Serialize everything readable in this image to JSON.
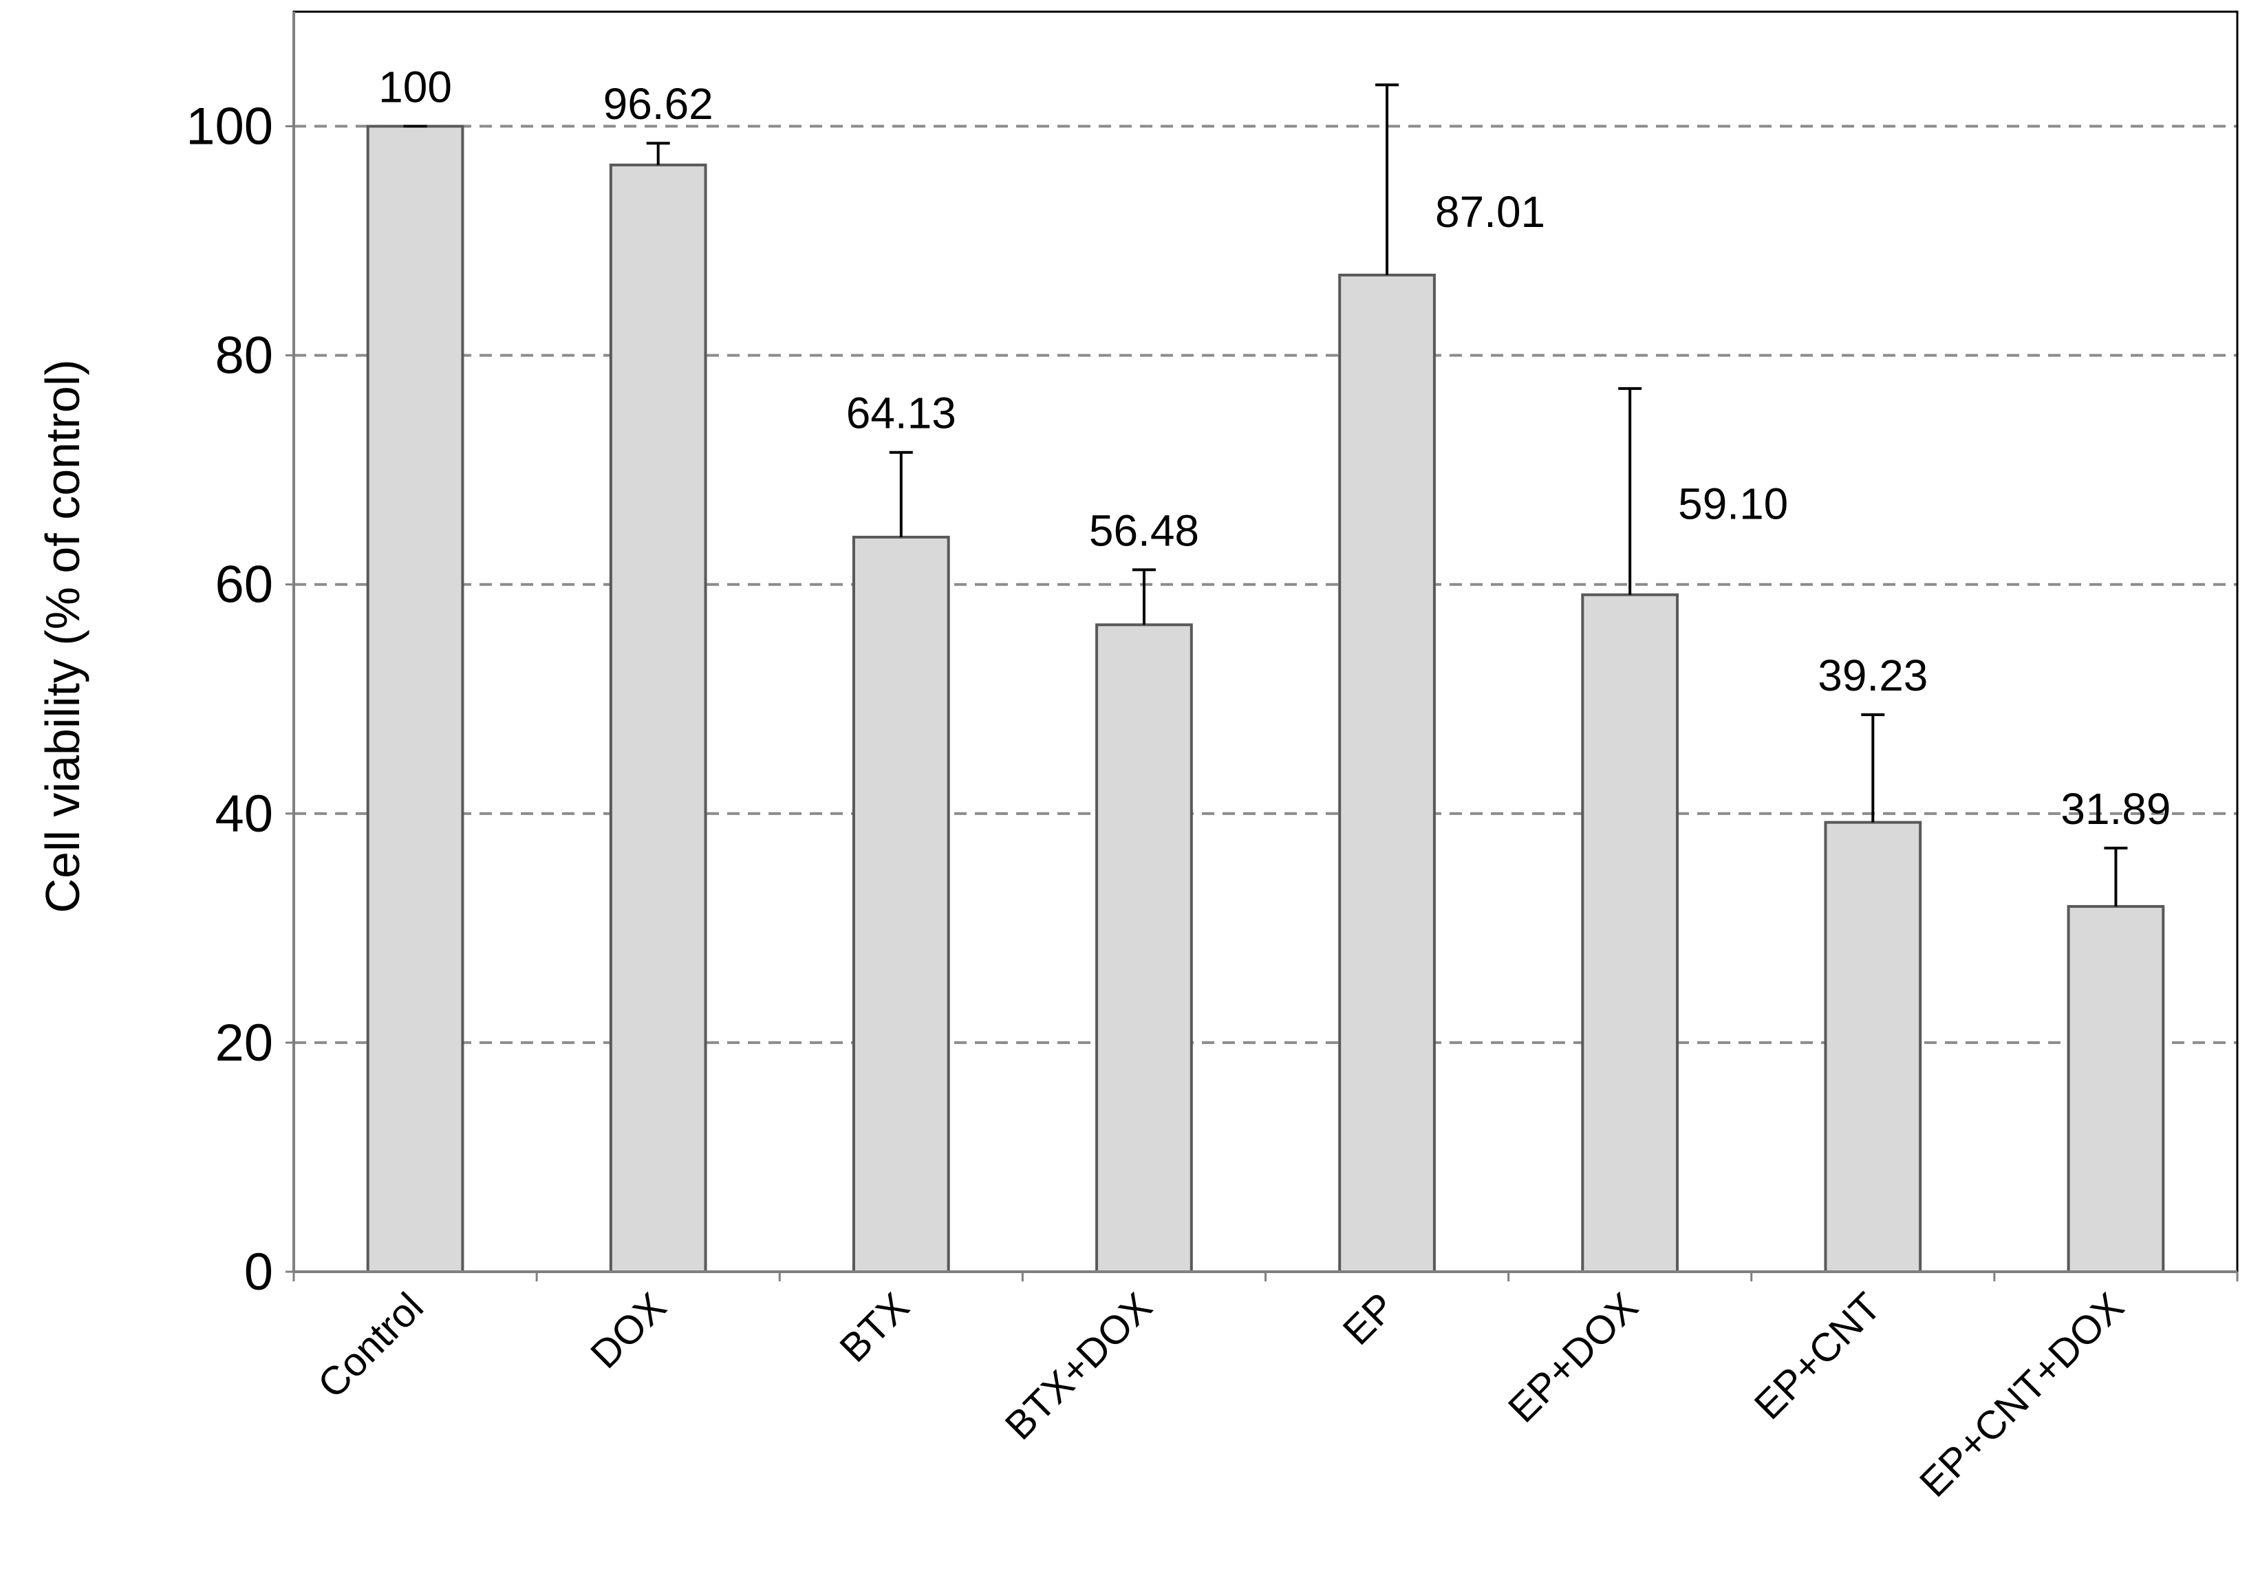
{
  "chart_data": {
    "type": "bar",
    "title": "",
    "xlabel": "",
    "ylabel": "Cell viability (% of control)",
    "ylim": [
      0,
      110
    ],
    "yticks": [
      0,
      20,
      40,
      60,
      80,
      100
    ],
    "grid": "horizontal dashed",
    "categories": [
      "Control",
      "DOX",
      "BTX",
      "BTX+DOX",
      "EP",
      "EP+DOX",
      "EP+CNT",
      "EP+CNT+DOX"
    ],
    "values": [
      100,
      96.62,
      64.13,
      56.48,
      87.01,
      59.1,
      39.23,
      31.89
    ],
    "value_labels": [
      "100",
      "96.62",
      "64.13",
      "56.48",
      "87.01",
      "59.10",
      "39.23",
      "31.89"
    ],
    "error_plus": [
      0,
      1.9,
      7.4,
      4.8,
      16.6,
      18.0,
      9.4,
      5.1
    ],
    "colors": {
      "bar_fill": "#d9d9d9",
      "bar_stroke": "#595959",
      "grid": "#8c8c8c",
      "axis": "#808080"
    }
  }
}
